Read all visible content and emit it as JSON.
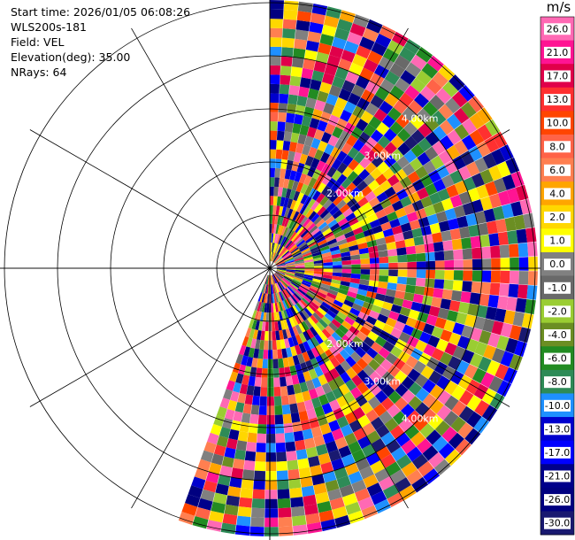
{
  "header": {
    "start_time": "Start time: 2026/01/05 06:08:26",
    "instrument": "WLS200s-181",
    "field": "Field: VEL",
    "elevation": "Elevation(deg): 35.00",
    "nrays": "NRays: 64"
  },
  "chart_data": {
    "type": "heatmap",
    "projection": "polar PPI",
    "field": "VEL",
    "units": "m/s",
    "elevation_deg": 35.0,
    "n_rays": 64,
    "azimuth_sector_deg": [
      0,
      200
    ],
    "range_ring_labels": [
      "2.00km",
      "3.00km",
      "4.00km"
    ],
    "range_ring_bearing_deg": [
      45,
      135
    ],
    "colorbar": {
      "title": "m/s",
      "tick_labels": [
        "26.0",
        "21.0",
        "17.0",
        "13.0",
        "10.0",
        "8.0",
        "6.0",
        "4.0",
        "2.0",
        "1.0",
        "0.0",
        "-1.0",
        "-2.0",
        "-4.0",
        "-6.0",
        "-8.0",
        "-10.0",
        "-13.0",
        "-17.0",
        "-21.0",
        "-26.0",
        "-30.0"
      ],
      "colors": [
        "#ff69b4",
        "#ff1493",
        "#e0004a",
        "#ff3030",
        "#ff4500",
        "#ff6347",
        "#ff7f50",
        "#ffa500",
        "#ffd700",
        "#ffff00",
        "#808080",
        "#696969",
        "#9acd32",
        "#6b8e23",
        "#228b22",
        "#2e8b57",
        "#1e90ff",
        "#0000cd",
        "#0000ff",
        "#00008b",
        "#000080",
        "#191970"
      ]
    }
  }
}
